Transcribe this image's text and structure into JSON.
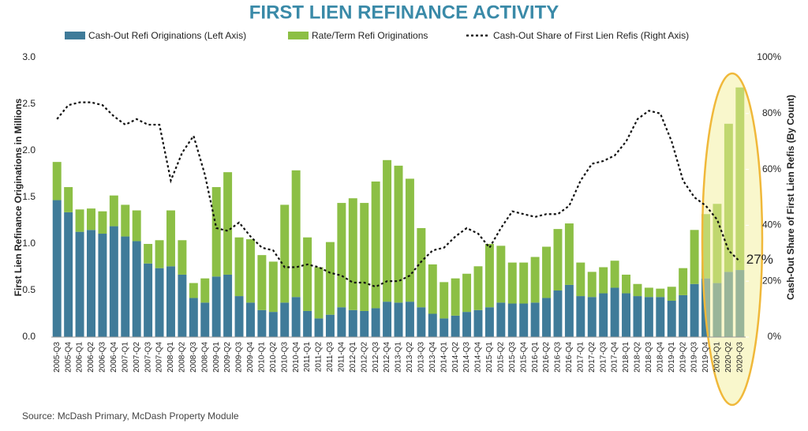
{
  "chart_data": {
    "type": "bar",
    "title": "FIRST LIEN REFINANCE ACTIVITY",
    "ylabel": "First Lien Refinance Originations in Millions",
    "y2label": "Cash-Out Share of First Lien Refis (By Count)",
    "source": "Source: McDash Primary, McDash Property Module",
    "annotation": "27%",
    "stacked": true,
    "categories": [
      "2005-Q3",
      "2005-Q4",
      "2006-Q1",
      "2006-Q2",
      "2006-Q3",
      "2006-Q4",
      "2007-Q1",
      "2007-Q2",
      "2007-Q3",
      "2007-Q4",
      "2008-Q1",
      "2008-Q2",
      "2008-Q3",
      "2008-Q4",
      "2009-Q1",
      "2009-Q2",
      "2009-Q3",
      "2009-Q4",
      "2010-Q1",
      "2010-Q2",
      "2010-Q3",
      "2010-Q4",
      "2011-Q1",
      "2011-Q2",
      "2011-Q3",
      "2011-Q4",
      "2012-Q1",
      "2012-Q2",
      "2012-Q3",
      "2012-Q4",
      "2013-Q1",
      "2013-Q2",
      "2013-Q3",
      "2013-Q4",
      "2014-Q1",
      "2014-Q2",
      "2014-Q3",
      "2014-Q4",
      "2015-Q1",
      "2015-Q2",
      "2015-Q3",
      "2015-Q4",
      "2016-Q1",
      "2016-Q2",
      "2016-Q3",
      "2016-Q4",
      "2017-Q1",
      "2017-Q2",
      "2017-Q3",
      "2017-Q4",
      "2018-Q1",
      "2018-Q2",
      "2018-Q3",
      "2018-Q4",
      "2019-Q1",
      "2019-Q2",
      "2019-Q3",
      "2019-Q4",
      "2020-Q1",
      "2020-Q2",
      "2020-Q3"
    ],
    "series": [
      {
        "name": "Cash-Out Refi Originations (Left Axis)",
        "color": "#3f7b99",
        "kind": "bar",
        "values": [
          1.47,
          1.34,
          1.13,
          1.15,
          1.11,
          1.19,
          1.08,
          1.03,
          0.79,
          0.74,
          0.76,
          0.67,
          0.42,
          0.37,
          0.65,
          0.67,
          0.44,
          0.37,
          0.29,
          0.27,
          0.37,
          0.43,
          0.28,
          0.2,
          0.24,
          0.32,
          0.29,
          0.28,
          0.31,
          0.38,
          0.37,
          0.38,
          0.32,
          0.25,
          0.2,
          0.23,
          0.27,
          0.29,
          0.32,
          0.37,
          0.36,
          0.36,
          0.37,
          0.42,
          0.5,
          0.56,
          0.44,
          0.43,
          0.47,
          0.53,
          0.47,
          0.44,
          0.43,
          0.43,
          0.39,
          0.45,
          0.57,
          0.63,
          0.58,
          0.7,
          0.72
        ]
      },
      {
        "name": "Rate/Term Refi Originations",
        "color": "#8cbf45",
        "kind": "bar",
        "values": [
          0.41,
          0.27,
          0.24,
          0.23,
          0.24,
          0.33,
          0.34,
          0.33,
          0.21,
          0.3,
          0.6,
          0.37,
          0.16,
          0.26,
          0.96,
          1.1,
          0.63,
          0.68,
          0.59,
          0.54,
          1.05,
          1.36,
          0.79,
          0.55,
          0.78,
          1.12,
          1.2,
          1.16,
          1.36,
          1.52,
          1.47,
          1.32,
          0.85,
          0.53,
          0.39,
          0.4,
          0.41,
          0.47,
          0.68,
          0.61,
          0.44,
          0.44,
          0.49,
          0.55,
          0.66,
          0.66,
          0.36,
          0.27,
          0.28,
          0.29,
          0.2,
          0.13,
          0.1,
          0.09,
          0.15,
          0.29,
          0.58,
          0.69,
          0.85,
          1.59,
          1.96
        ]
      },
      {
        "name": "Cash-Out Share of First Lien Refis (Right Axis)",
        "color": "#111111",
        "kind": "line",
        "axis": "y2",
        "dashed": true,
        "values": [
          78,
          83,
          84,
          84,
          83,
          79,
          76,
          78,
          76,
          76,
          56,
          66,
          72,
          58,
          39,
          38,
          41,
          36,
          32,
          31,
          25,
          25,
          26,
          25,
          23,
          22,
          19.5,
          19.5,
          18,
          20,
          20,
          22,
          27,
          31,
          32,
          36,
          39,
          37,
          32,
          39,
          45,
          44,
          43,
          44,
          44,
          47,
          56,
          62,
          63,
          65,
          70,
          78,
          81,
          80,
          70,
          56,
          50,
          47,
          42,
          31,
          27
        ]
      }
    ],
    "ylim": [
      0,
      3
    ],
    "yticks": [
      {
        "value": 0,
        "label": "0.0"
      },
      {
        "value": 0.5,
        "label": "0.5"
      },
      {
        "value": 1,
        "label": "1.0"
      },
      {
        "value": 1.5,
        "label": "1.5"
      },
      {
        "value": 2,
        "label": "2.0"
      },
      {
        "value": 2.5,
        "label": "2.5"
      },
      {
        "value": 3,
        "label": "3.0"
      }
    ],
    "y2lim": [
      0,
      100
    ],
    "y2ticks": [
      {
        "value": 0,
        "label": "0%"
      },
      {
        "value": 20,
        "label": "20%"
      },
      {
        "value": 40,
        "label": "40%"
      },
      {
        "value": 60,
        "label": "60%"
      },
      {
        "value": 80,
        "label": "80%"
      },
      {
        "value": 100,
        "label": "100%"
      }
    ],
    "title_color": "#3a8aa8",
    "grid": false
  }
}
